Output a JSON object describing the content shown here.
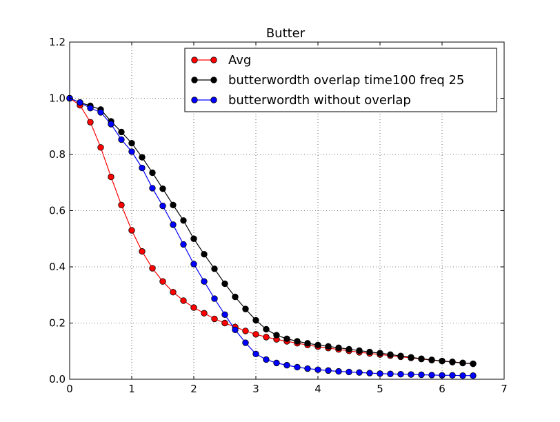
{
  "chart_data": {
    "type": "line",
    "title": "Butter",
    "xlabel": "",
    "ylabel": "",
    "xlim": [
      0,
      7
    ],
    "ylim": [
      0.0,
      1.2
    ],
    "xticks": [
      "0",
      "1",
      "2",
      "3",
      "4",
      "5",
      "6",
      "7"
    ],
    "yticks": [
      "0.0",
      "0.2",
      "0.4",
      "0.6",
      "0.8",
      "1.0",
      "1.2"
    ],
    "grid": true,
    "legend_position": "top-right",
    "x": [
      0,
      0.1667,
      0.3333,
      0.5,
      0.6667,
      0.8333,
      1.0,
      1.1667,
      1.3333,
      1.5,
      1.6667,
      1.8333,
      2.0,
      2.1667,
      2.3333,
      2.5,
      2.6667,
      2.8333,
      3.0,
      3.1667,
      3.3333,
      3.5,
      3.6667,
      3.8333,
      4.0,
      4.1667,
      4.3333,
      4.5,
      4.6667,
      4.8333,
      5.0,
      5.1667,
      5.3333,
      5.5,
      5.6667,
      5.8333,
      6.0,
      6.1667,
      6.3333,
      6.5
    ],
    "series": [
      {
        "name": "Avg",
        "color": "#ff0000",
        "values": [
          1.0,
          0.975,
          0.915,
          0.825,
          0.72,
          0.62,
          0.53,
          0.455,
          0.395,
          0.348,
          0.31,
          0.28,
          0.255,
          0.235,
          0.215,
          0.2,
          0.186,
          0.172,
          0.16,
          0.15,
          0.142,
          0.135,
          0.128,
          0.122,
          0.116,
          0.111,
          0.106,
          0.101,
          0.096,
          0.092,
          0.088,
          0.084,
          0.08,
          0.076,
          0.072,
          0.068,
          0.065,
          0.062,
          0.058,
          0.055
        ]
      },
      {
        "name": "butterwordth overlap time100 freq 25",
        "color": "#000000",
        "values": [
          1.0,
          0.985,
          0.973,
          0.96,
          0.918,
          0.88,
          0.84,
          0.79,
          0.735,
          0.678,
          0.62,
          0.565,
          0.5,
          0.445,
          0.393,
          0.34,
          0.293,
          0.25,
          0.21,
          0.178,
          0.157,
          0.144,
          0.135,
          0.128,
          0.122,
          0.117,
          0.112,
          0.107,
          0.102,
          0.097,
          0.093,
          0.088,
          0.083,
          0.078,
          0.073,
          0.069,
          0.065,
          0.061,
          0.058,
          0.055
        ]
      },
      {
        "name": "butterwordth without overlap",
        "color": "#0000ff",
        "values": [
          1.0,
          0.985,
          0.965,
          0.95,
          0.908,
          0.853,
          0.81,
          0.752,
          0.68,
          0.617,
          0.55,
          0.48,
          0.41,
          0.348,
          0.287,
          0.23,
          0.176,
          0.13,
          0.09,
          0.07,
          0.058,
          0.05,
          0.043,
          0.038,
          0.034,
          0.031,
          0.028,
          0.026,
          0.024,
          0.022,
          0.02,
          0.019,
          0.018,
          0.017,
          0.016,
          0.015,
          0.014,
          0.014,
          0.013,
          0.013
        ]
      }
    ]
  }
}
